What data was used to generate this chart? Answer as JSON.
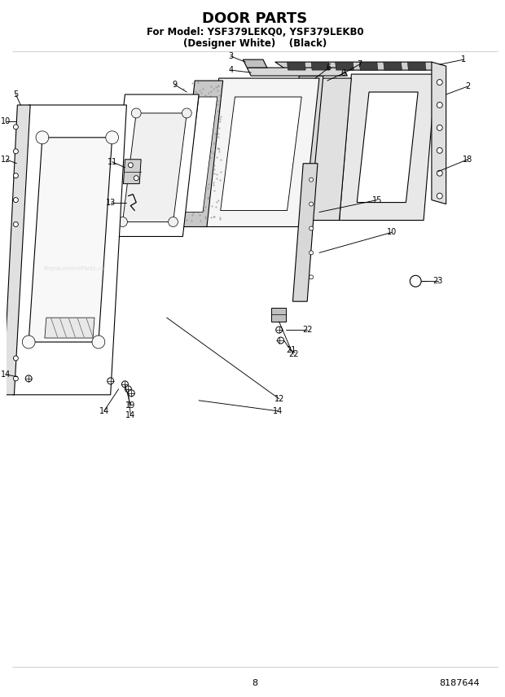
{
  "title": "DOOR PARTS",
  "subtitle1": "For Model: YSF379LEKQ0, YSF379LEKB0",
  "subtitle2": "(Designer White)    (Black)",
  "page_number": "8",
  "part_number": "8187644",
  "bg": "#ffffff",
  "fg": "#000000",
  "title_fs": 13,
  "sub_fs": 8.5,
  "foot_fs": 8,
  "lbl_fs": 7,
  "lw": 0.8
}
